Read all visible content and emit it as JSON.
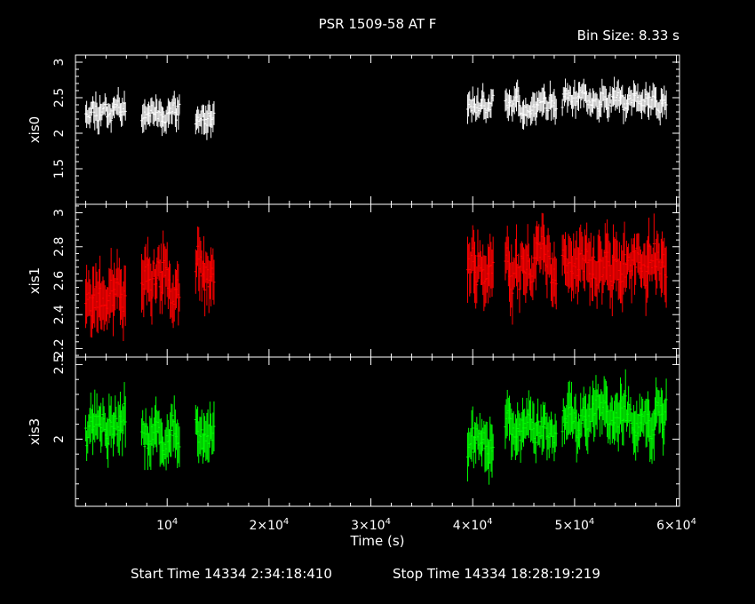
{
  "chart_data": {
    "type": "scatter",
    "title": "PSR 1509-58 AT F",
    "subtitle": "Bin Size: 8.33 s",
    "xlabel": "Time (s)",
    "x_range": [
      1000,
      60300
    ],
    "x_ticks": [
      {
        "value": 10000,
        "mantissa": "10",
        "exp": "4"
      },
      {
        "value": 20000,
        "mantissa": "2×10",
        "exp": "4"
      },
      {
        "value": 30000,
        "mantissa": "3×10",
        "exp": "4"
      },
      {
        "value": 40000,
        "mantissa": "4×10",
        "exp": "4"
      },
      {
        "value": 50000,
        "mantissa": "5×10",
        "exp": "4"
      },
      {
        "value": 60000,
        "mantissa": "6×10",
        "exp": "4"
      }
    ],
    "footer": {
      "start": "Start Time 14334  2:34:18:410",
      "stop": "Stop Time 14334 18:28:19:219"
    },
    "segments": [
      [
        2000,
        5900
      ],
      [
        7500,
        11200
      ],
      [
        12800,
        14600
      ],
      [
        39500,
        42000
      ],
      [
        43200,
        48200
      ],
      [
        48800,
        59000
      ]
    ],
    "panels": [
      {
        "name": "xis0",
        "color": "#ffffff",
        "ylim": [
          1.0,
          3.1
        ],
        "yticks": [
          1.5,
          2,
          2.5,
          3
        ],
        "ytick_labels": [
          "1.5",
          "2",
          "2.5",
          "3"
        ],
        "mean": 2.35,
        "spread": 0.12,
        "err": 0.14,
        "seed": 11,
        "segment_means": [
          2.35,
          2.32,
          2.2,
          2.38,
          2.4,
          2.45
        ]
      },
      {
        "name": "xis1",
        "color": "#ff0000",
        "ylim": [
          2.15,
          3.05
        ],
        "yticks": [
          2.2,
          2.4,
          2.6,
          2.8,
          3
        ],
        "ytick_labels": [
          "2.2",
          "2.4",
          "2.6",
          "2.8",
          "3"
        ],
        "mean": 2.6,
        "spread": 0.1,
        "err": 0.13,
        "seed": 23,
        "segment_means": [
          2.52,
          2.6,
          2.62,
          2.68,
          2.7,
          2.68
        ]
      },
      {
        "name": "xis3",
        "color": "#00ff00",
        "ylim": [
          1.55,
          2.55
        ],
        "yticks": [
          2,
          2.5
        ],
        "ytick_labels": [
          "2",
          "2.5"
        ],
        "mean": 2.05,
        "spread": 0.1,
        "err": 0.12,
        "seed": 37,
        "segment_means": [
          2.1,
          2.02,
          2.05,
          1.97,
          2.05,
          2.15
        ]
      }
    ]
  }
}
